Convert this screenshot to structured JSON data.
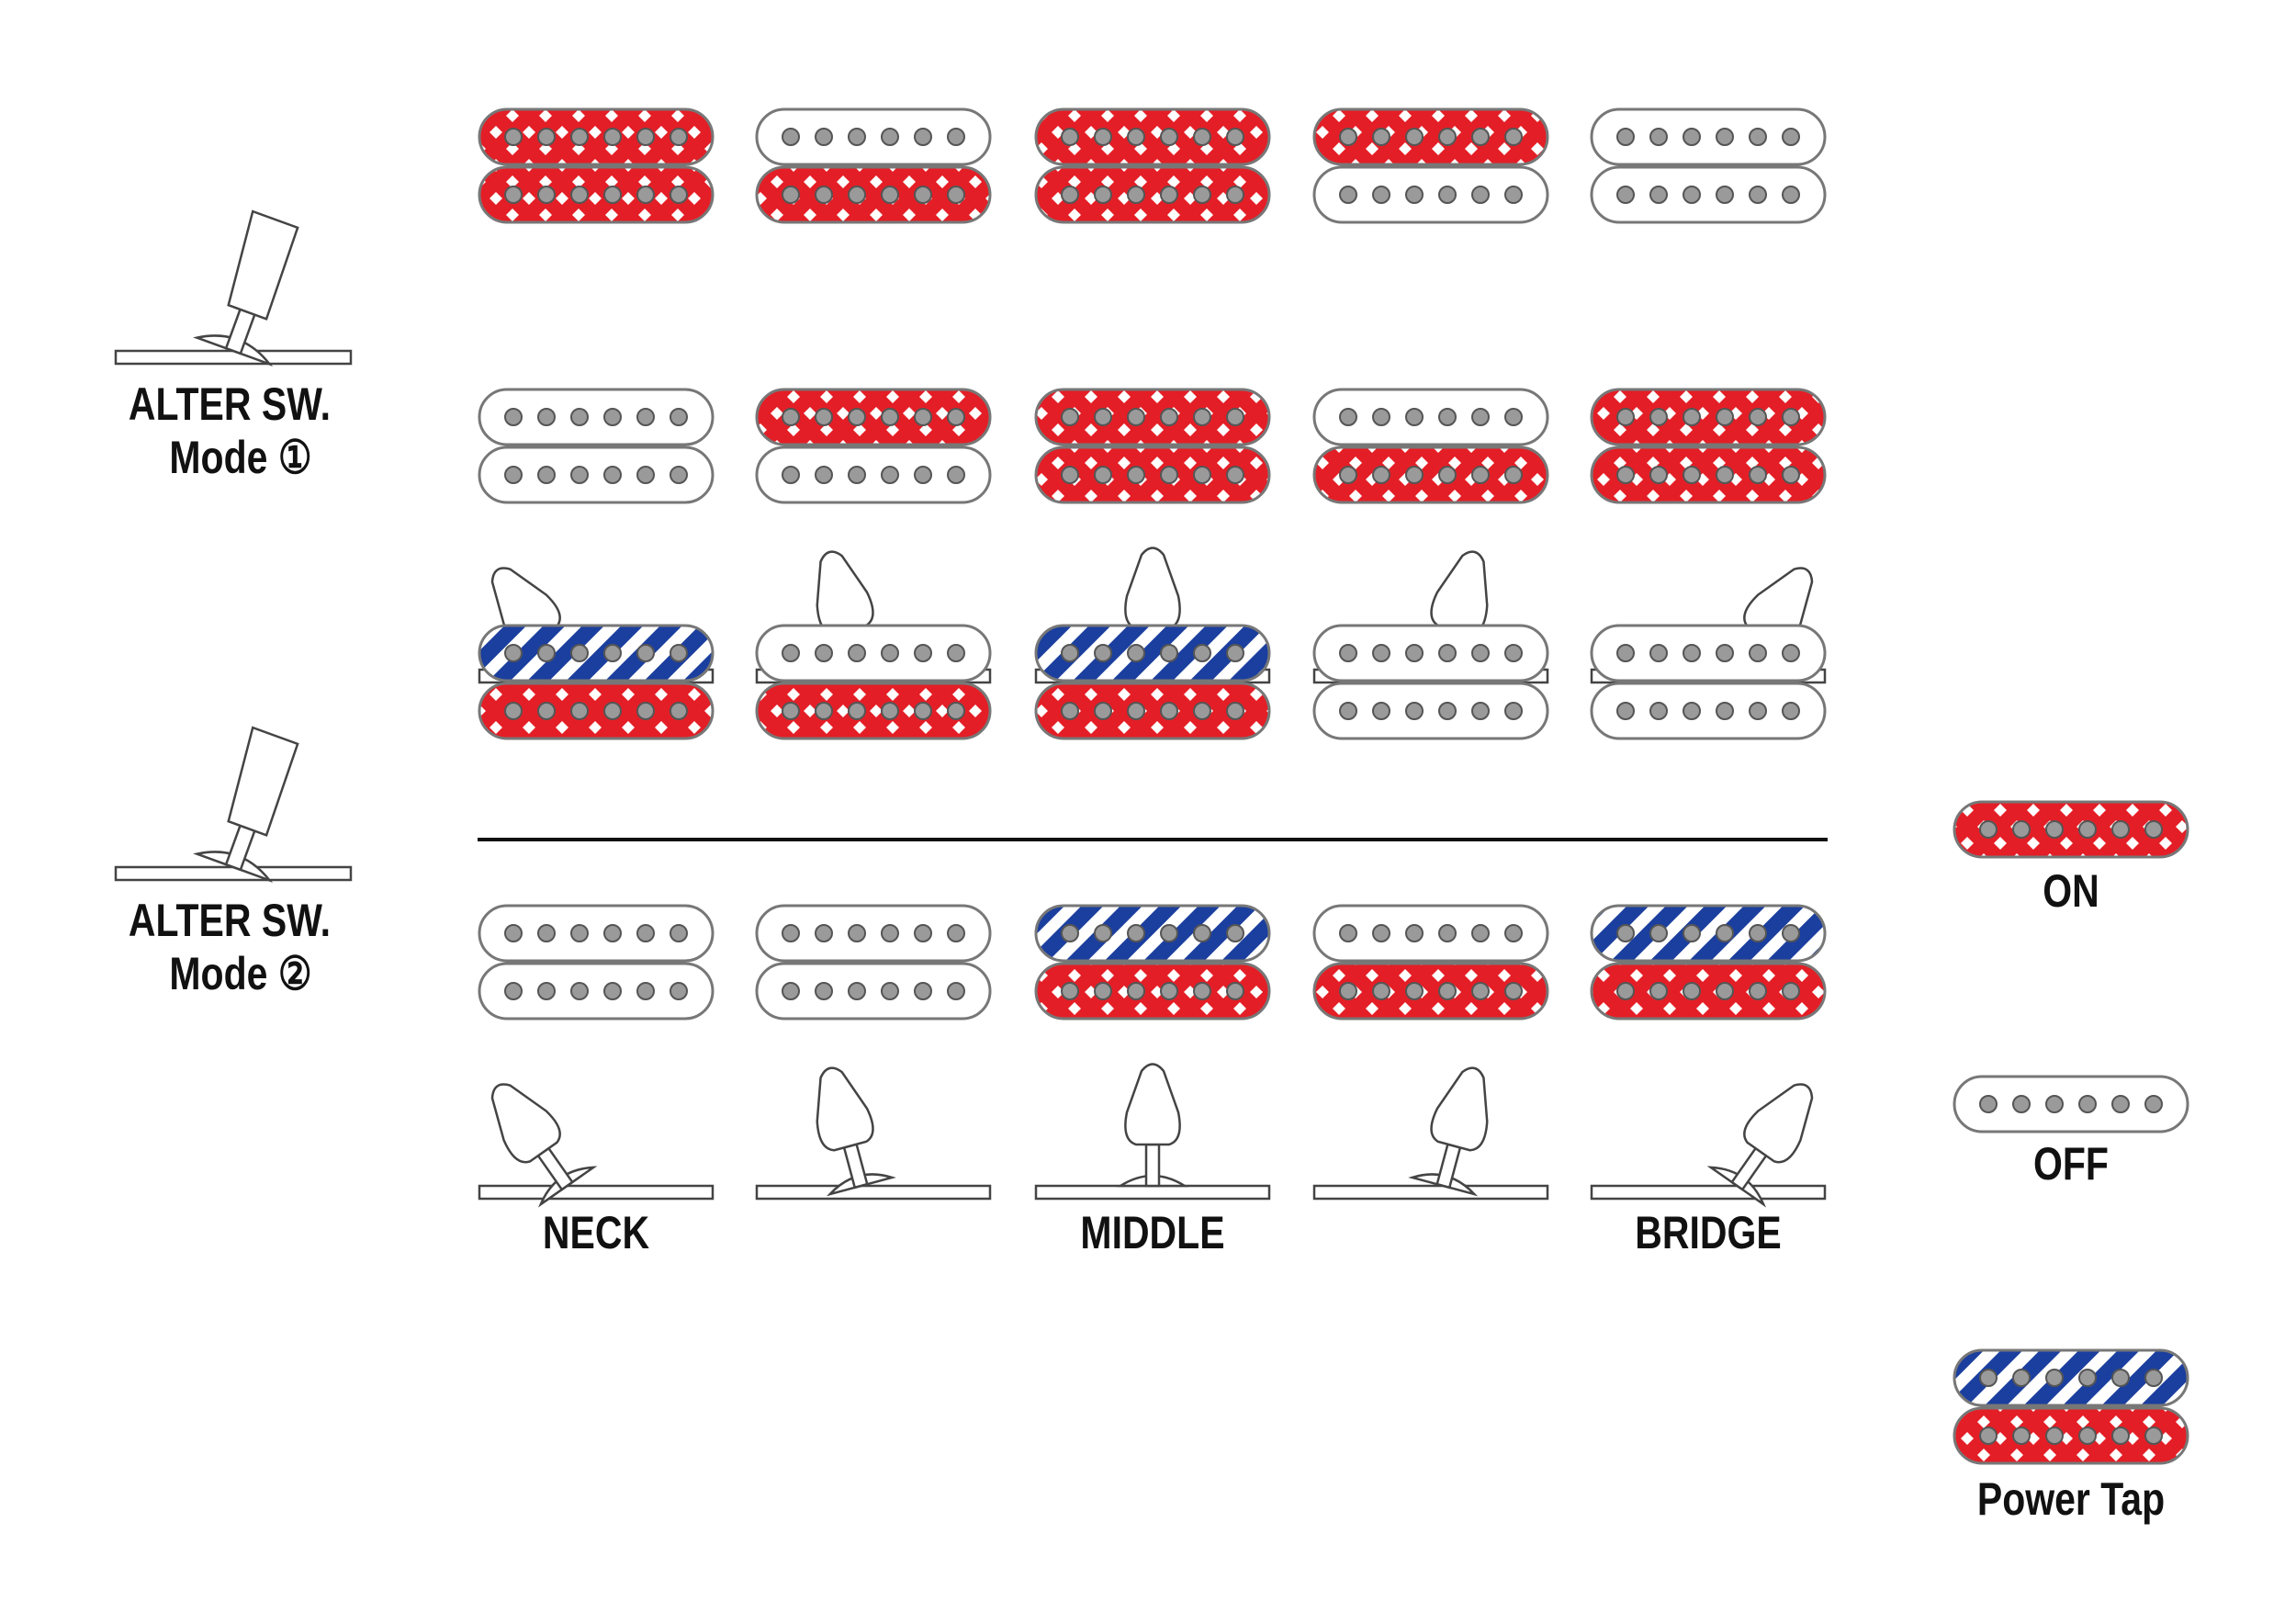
{
  "modes": [
    {
      "switch_label": "ALTER SW.",
      "mode_label": "Mode ①",
      "position_labels": [
        "NECK",
        "MIDDLE",
        "BRIDGE"
      ]
    },
    {
      "switch_label": "ALTER SW.",
      "mode_label": "Mode ②",
      "position_labels": [
        "NECK",
        "MIDDLE",
        "BRIDGE"
      ]
    }
  ],
  "legend": [
    {
      "label": "ON"
    },
    {
      "label": "OFF"
    },
    {
      "label": "Power Tap"
    }
  ]
}
